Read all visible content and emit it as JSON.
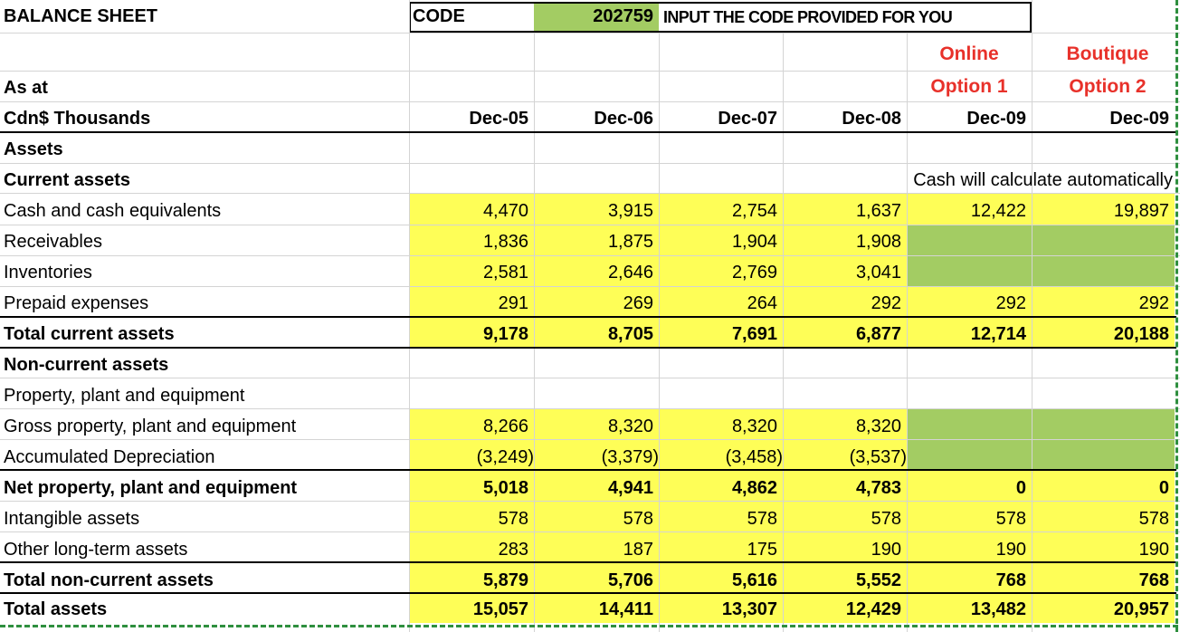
{
  "header": {
    "title": "BALANCE SHEET",
    "code_label": "CODE",
    "code_value": "202759",
    "code_instruction": "INPUT THE CODE PROVIDED FOR YOU",
    "as_at": "As at",
    "units": "Cdn$ Thousands",
    "option1_line1": "Online",
    "option1_line2": "Option 1",
    "option2_line1": "Boutique",
    "option2_line2": "Option 2",
    "cash_note": "Cash will calculate automatically"
  },
  "columns": [
    "Dec-05",
    "Dec-06",
    "Dec-07",
    "Dec-08",
    "Dec-09",
    "Dec-09"
  ],
  "sections": {
    "assets": "Assets",
    "current_assets": "Current assets",
    "non_current_assets": "Non-current assets",
    "ppe_heading": "Property, plant and equipment"
  },
  "rows": [
    {
      "label": "Cash and cash equivalents",
      "values": [
        "4,470",
        "3,915",
        "2,754",
        "1,637",
        "12,422",
        "19,897"
      ]
    },
    {
      "label": "Receivables",
      "values": [
        "1,836",
        "1,875",
        "1,904",
        "1,908",
        "",
        ""
      ]
    },
    {
      "label": "Inventories",
      "values": [
        "2,581",
        "2,646",
        "2,769",
        "3,041",
        "",
        ""
      ]
    },
    {
      "label": "Prepaid expenses",
      "values": [
        "291",
        "269",
        "264",
        "292",
        "292",
        "292"
      ]
    },
    {
      "label": "Total current assets",
      "values": [
        "9,178",
        "8,705",
        "7,691",
        "6,877",
        "12,714",
        "20,188"
      ]
    },
    {
      "label": "Gross property, plant and equipment",
      "values": [
        "8,266",
        "8,320",
        "8,320",
        "8,320",
        "",
        ""
      ]
    },
    {
      "label": "Accumulated Depreciation",
      "values": [
        "(3,249)",
        "(3,379)",
        "(3,458)",
        "(3,537)",
        "",
        ""
      ]
    },
    {
      "label": "Net property, plant and equipment",
      "values": [
        "5,018",
        "4,941",
        "4,862",
        "4,783",
        "0",
        "0"
      ]
    },
    {
      "label": "Intangible assets",
      "values": [
        "578",
        "578",
        "578",
        "578",
        "578",
        "578"
      ]
    },
    {
      "label": "Other long-term assets",
      "values": [
        "283",
        "187",
        "175",
        "190",
        "190",
        "190"
      ]
    },
    {
      "label": "Total non-current assets",
      "values": [
        "5,879",
        "5,706",
        "5,616",
        "5,552",
        "768",
        "768"
      ]
    },
    {
      "label": "Total assets",
      "values": [
        "15,057",
        "14,411",
        "13,307",
        "12,429",
        "13,482",
        "20,957"
      ]
    }
  ],
  "colors": {
    "input_yellow": "#fefe57",
    "input_green": "#a3cc63",
    "option_red": "#e8312a",
    "selection_border": "#2f8f3f"
  }
}
